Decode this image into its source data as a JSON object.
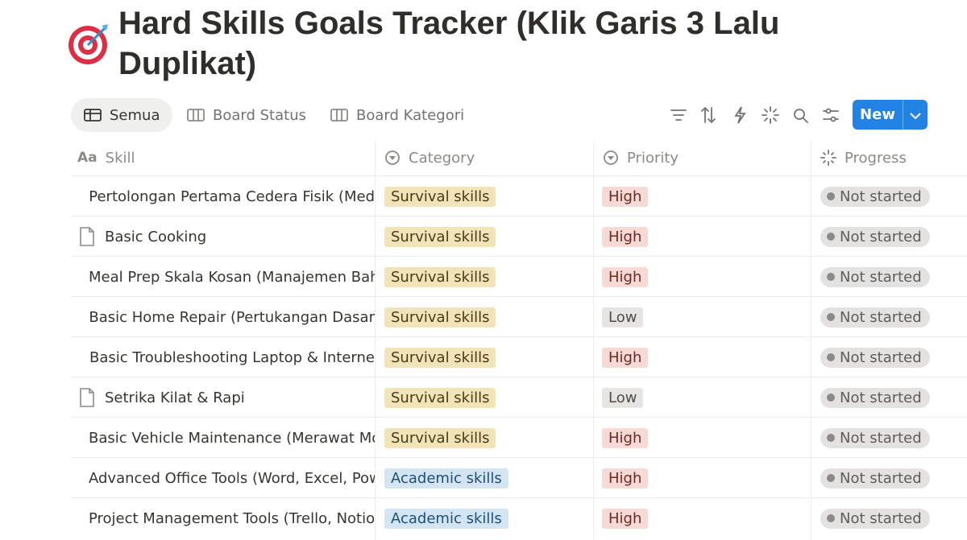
{
  "header": {
    "title": "Hard Skills Goals Tracker (Klik Garis 3 Lalu Duplikat)"
  },
  "views": [
    "Semua",
    "Board Status",
    "Board Kategori"
  ],
  "toolbar": {
    "new_button": "New"
  },
  "table": {
    "columns": [
      "Skill",
      "Category",
      "Priority",
      "Progress"
    ],
    "rows": [
      [
        "Pertolongan Pertama Cedera Fisik (Med",
        "Survival skills",
        "High",
        "Not started"
      ],
      [
        "Basic Cooking",
        "Survival skills",
        "High",
        "Not started"
      ],
      [
        "Meal Prep Skala Kosan (Manajemen Bah",
        "Survival skills",
        "High",
        "Not started"
      ],
      [
        "Basic Home Repair (Pertukangan Dasar",
        "Survival skills",
        "Low",
        "Not started"
      ],
      [
        "Basic Troubleshooting Laptop & Interne",
        "Survival skills",
        "High",
        "Not started"
      ],
      [
        "Setrika Kilat & Rapi",
        "Survival skills",
        "Low",
        "Not started"
      ],
      [
        "Basic Vehicle Maintenance (Merawat Mo",
        "Survival skills",
        "High",
        "Not started"
      ],
      [
        "Advanced Office Tools (Word, Excel, Pow",
        "Academic skills",
        "High",
        "Not started"
      ],
      [
        "Project Management Tools (Trello, Notio",
        "Academic skills",
        "High",
        "Not started"
      ]
    ]
  }
}
